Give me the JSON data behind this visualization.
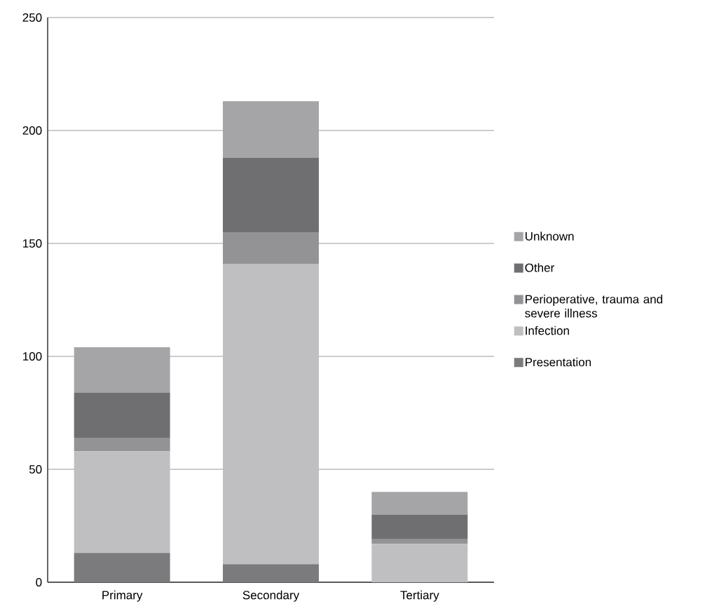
{
  "chart_data": {
    "type": "bar",
    "stacked": true,
    "categories": [
      "Primary",
      "Secondary",
      "Tertiary"
    ],
    "series": [
      {
        "name": "Presentation",
        "color": "#7b7b7d",
        "values": [
          13,
          8,
          0
        ]
      },
      {
        "name": "Infection",
        "color": "#bfbfc1",
        "values": [
          45,
          133,
          17
        ]
      },
      {
        "name": "Perioperative, trauma and severe illness",
        "color": "#939396",
        "values": [
          6,
          14,
          2
        ]
      },
      {
        "name": "Other",
        "color": "#6f6f71",
        "values": [
          20,
          33,
          11
        ]
      },
      {
        "name": "Unknown",
        "color": "#a5a5a8",
        "values": [
          20,
          25,
          10
        ]
      }
    ],
    "ylim": [
      0,
      250
    ],
    "yticks": [
      0,
      50,
      100,
      150,
      200,
      250
    ],
    "grid": "y",
    "legend": "right"
  }
}
